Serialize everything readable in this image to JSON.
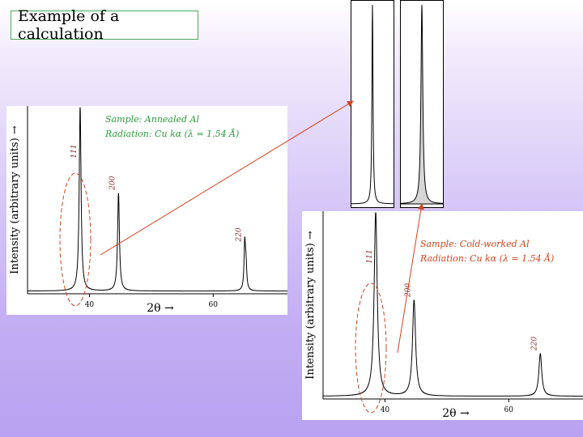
{
  "title": "Example of a calculation",
  "colors": {
    "annotation_green": "#2a9a3a",
    "annotation_red": "#d2441e",
    "peak_label": "#8a2a2a",
    "pointer_line": "#d2441e",
    "zoom_fill": "#d6d6d6"
  },
  "chart_data": [
    {
      "type": "line",
      "id": "annealed",
      "annotation_lines": [
        "Sample: Annealed Al",
        "Radiation: Cu kα (λ = 1.54 Å)"
      ],
      "xlabel": "2θ →",
      "ylabel": "Intensity (arbitrary units) →",
      "xlim": [
        30,
        72
      ],
      "x_ticks": [
        40,
        60
      ],
      "ylim": [
        0,
        100
      ],
      "peaks": [
        {
          "label": "111",
          "x": 38.5,
          "height": 100,
          "width": 0.18,
          "doublet": false
        },
        {
          "label": "200",
          "x": 44.7,
          "height": 53,
          "width": 0.18,
          "doublet": false
        },
        {
          "label": "220",
          "x": 65.1,
          "height": 25,
          "width": 0.14,
          "doublet": true
        }
      ],
      "highlighted_peak": "111"
    },
    {
      "type": "line",
      "id": "cold_worked",
      "annotation_lines": [
        "Sample: Cold-worked Al",
        "Radiation: Cu kα (λ = 1.54 Å)"
      ],
      "xlabel": "2θ →",
      "ylabel": "Intensity (arbitrary units) →",
      "xlim": [
        30,
        72
      ],
      "x_ticks": [
        40,
        60
      ],
      "ylim": [
        0,
        100
      ],
      "peaks": [
        {
          "label": "111",
          "x": 38.5,
          "height": 100,
          "width": 0.3,
          "doublet": false
        },
        {
          "label": "200",
          "x": 44.7,
          "height": 52,
          "width": 0.3,
          "doublet": false
        },
        {
          "label": "220",
          "x": 65.1,
          "height": 23,
          "width": 0.28,
          "doublet": false
        }
      ],
      "highlighted_peak": "111"
    }
  ]
}
